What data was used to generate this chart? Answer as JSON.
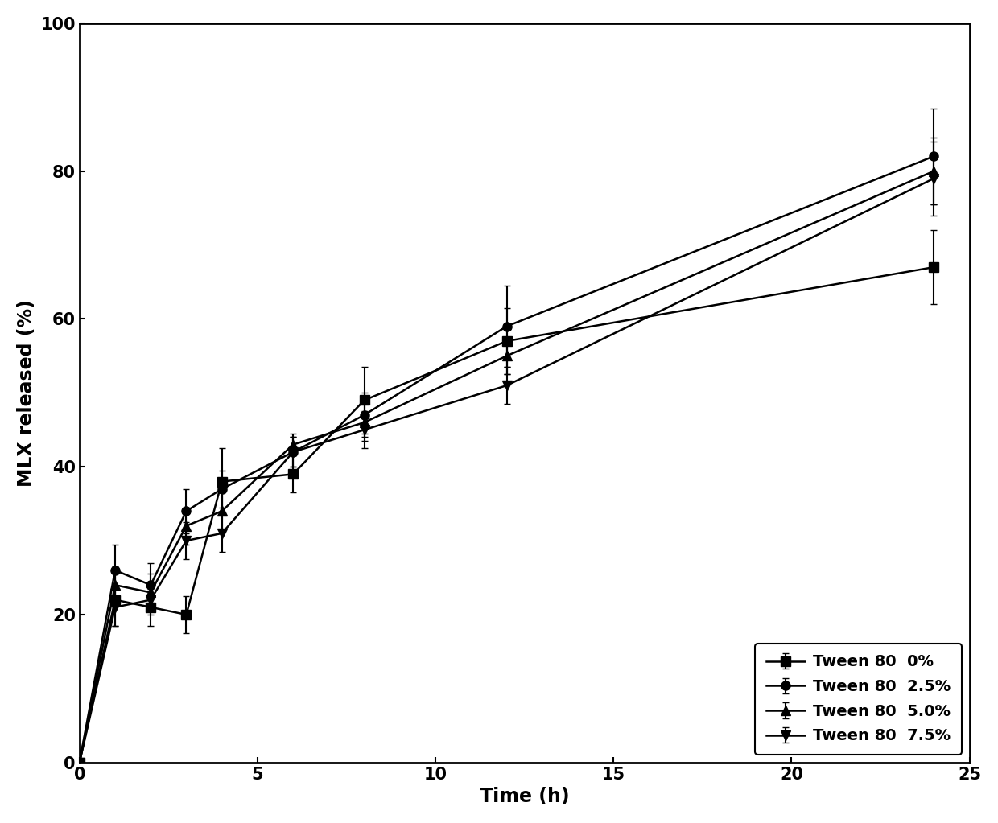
{
  "series": [
    {
      "label": "Tween 80  0%",
      "marker": "s",
      "x": [
        0,
        1,
        2,
        3,
        4,
        6,
        8,
        12,
        24
      ],
      "y": [
        0,
        22,
        21,
        20,
        38,
        39,
        49,
        57,
        67
      ],
      "yerr": [
        0,
        3.5,
        2.5,
        2.5,
        4.5,
        2.5,
        4.5,
        4.5,
        5.0
      ]
    },
    {
      "label": "Tween 80  2.5%",
      "marker": "o",
      "x": [
        0,
        1,
        2,
        3,
        4,
        6,
        8,
        12,
        24
      ],
      "y": [
        0,
        26,
        24,
        34,
        37,
        42,
        47,
        59,
        82
      ],
      "yerr": [
        0,
        3.5,
        3.0,
        3.0,
        2.5,
        2.0,
        3.0,
        5.5,
        6.5
      ]
    },
    {
      "label": "Tween 80  5.0%",
      "marker": "^",
      "x": [
        0,
        1,
        2,
        3,
        4,
        6,
        8,
        12,
        24
      ],
      "y": [
        0,
        24,
        23,
        32,
        34,
        43,
        46,
        55,
        80
      ],
      "yerr": [
        0,
        2.5,
        2.5,
        2.5,
        2.5,
        1.5,
        2.5,
        2.5,
        4.5
      ]
    },
    {
      "label": "Tween 80  7.5%",
      "marker": "v",
      "x": [
        0,
        1,
        2,
        3,
        4,
        6,
        8,
        12,
        24
      ],
      "y": [
        0,
        21,
        22,
        30,
        31,
        42,
        45,
        51,
        79
      ],
      "yerr": [
        0,
        2.5,
        2.0,
        2.5,
        2.5,
        2.0,
        2.5,
        2.5,
        5.0
      ]
    }
  ],
  "xlabel": "Time (h)",
  "ylabel": "MLX released (%)",
  "xlim": [
    0,
    25
  ],
  "ylim": [
    0,
    100
  ],
  "xticks": [
    0,
    5,
    10,
    15,
    20,
    25
  ],
  "yticks": [
    0,
    20,
    40,
    60,
    80,
    100
  ],
  "legend_loc": "lower right",
  "marker_size": 8,
  "line_width": 1.8,
  "capsize": 3,
  "elinewidth": 1.5,
  "color": "#000000",
  "background_color": "#ffffff",
  "legend_fontsize": 14,
  "label_fontsize": 17,
  "tick_fontsize": 15
}
